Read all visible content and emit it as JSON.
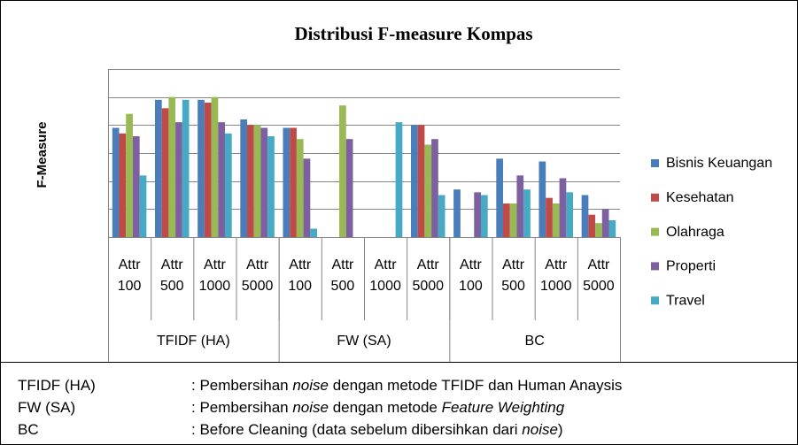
{
  "chart_data": {
    "type": "bar",
    "title": "Distribusi F-measure Kompas",
    "y_label": "F-Measure",
    "categories": [
      "Attr 100",
      "Attr 500",
      "Attr 1000",
      "Attr 5000",
      "Attr 100",
      "Attr 500",
      "Attr 1000",
      "Attr 5000",
      "Attr 100",
      "Attr 500",
      "Attr 1000",
      "Attr 5000"
    ],
    "groups": [
      {
        "name": "TFIDF (HA)",
        "size": 4
      },
      {
        "name": "FW (SA)",
        "size": 4
      },
      {
        "name": "BC",
        "size": 4
      }
    ],
    "series": [
      {
        "name": "Bisnis Keuangan",
        "color": "#4a7ebb",
        "values": [
          0.39,
          0.49,
          0.49,
          0.42,
          0.39,
          null,
          null,
          0.4,
          0.17,
          0.28,
          0.27,
          0.15
        ]
      },
      {
        "name": "Kesehatan",
        "color": "#be4b48",
        "values": [
          0.37,
          0.46,
          0.48,
          0.4,
          0.39,
          null,
          null,
          0.4,
          null,
          0.12,
          0.14,
          0.08
        ]
      },
      {
        "name": "Olahraga",
        "color": "#98b954",
        "values": [
          0.44,
          0.5,
          0.5,
          0.4,
          0.35,
          0.47,
          null,
          0.33,
          null,
          0.12,
          0.12,
          0.05
        ]
      },
      {
        "name": "Properti",
        "color": "#7d60a0",
        "values": [
          0.36,
          0.41,
          0.41,
          0.39,
          0.28,
          0.35,
          null,
          0.35,
          0.16,
          0.22,
          0.21,
          0.1
        ]
      },
      {
        "name": "Travel",
        "color": "#46aac5",
        "values": [
          0.22,
          0.49,
          0.37,
          0.36,
          0.03,
          null,
          0.41,
          0.15,
          0.15,
          0.17,
          0.16,
          0.06
        ]
      }
    ],
    "ylim": [
      0,
      0.6
    ],
    "yticks": [
      0,
      0.1,
      0.2,
      0.3,
      0.4,
      0.5,
      0.6
    ],
    "grid": true,
    "legend": "right"
  },
  "notes": [
    {
      "term": "TFIDF (HA)",
      "desc": [
        {
          "text": ": Pembersihan "
        },
        {
          "text": "noise",
          "italic": true
        },
        {
          "text": " dengan metode TFIDF dan Human Anaysis"
        }
      ]
    },
    {
      "term": "FW (SA)",
      "desc": [
        {
          "text": ": Pembersihan "
        },
        {
          "text": "noise",
          "italic": true
        },
        {
          "text": " dengan metode "
        },
        {
          "text": "Feature Weighting",
          "italic": true
        }
      ]
    },
    {
      "term": "BC",
      "desc": [
        {
          "text": ": Before Cleaning (data sebelum dibersihkan dari "
        },
        {
          "text": "noise",
          "italic": true
        },
        {
          "text": ")"
        }
      ]
    }
  ]
}
